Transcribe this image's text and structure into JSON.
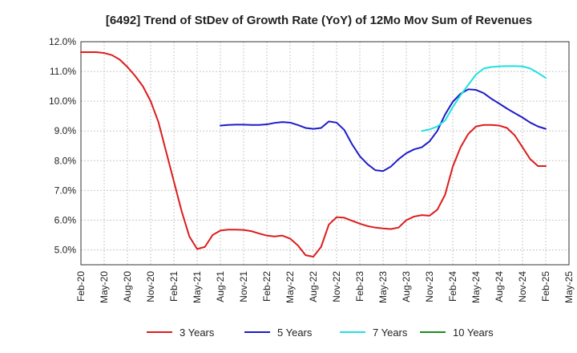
{
  "chart_data": {
    "type": "line",
    "title": "[6492]  Trend of StDev of Growth Rate (YoY) of 12Mo Mov Sum of Revenues",
    "xlabel": "",
    "ylabel": "",
    "ylim": [
      4.5,
      12.0
    ],
    "y_ticks": [
      5.0,
      6.0,
      7.0,
      8.0,
      9.0,
      10.0,
      11.0,
      12.0
    ],
    "y_tick_labels": [
      "5.0%",
      "6.0%",
      "7.0%",
      "8.0%",
      "9.0%",
      "10.0%",
      "11.0%",
      "12.0%"
    ],
    "x_range": [
      0,
      63
    ],
    "x_ticks": [
      0,
      3,
      6,
      9,
      12,
      15,
      18,
      21,
      24,
      27,
      30,
      33,
      36,
      39,
      42,
      45,
      48,
      51,
      54,
      57,
      60,
      63
    ],
    "x_tick_labels": [
      "Feb-20",
      "May-20",
      "Aug-20",
      "Nov-20",
      "Feb-21",
      "May-21",
      "Aug-21",
      "Nov-21",
      "Feb-22",
      "May-22",
      "Aug-22",
      "Nov-22",
      "Feb-23",
      "May-23",
      "Aug-23",
      "Nov-23",
      "Feb-24",
      "May-24",
      "Aug-24",
      "Nov-24",
      "Feb-25",
      "May-25"
    ],
    "grid": true,
    "legend_position": "bottom",
    "series": [
      {
        "name": "3 Years",
        "color": "#dd1c1c",
        "x": [
          0,
          1,
          2,
          3,
          4,
          5,
          6,
          7,
          8,
          9,
          10,
          11,
          12,
          13,
          14,
          15,
          16,
          17,
          18,
          19,
          20,
          21,
          22,
          23,
          24,
          25,
          26,
          27,
          28,
          29,
          30,
          31,
          32,
          33,
          34,
          35,
          36,
          37,
          38,
          39,
          40,
          41,
          42,
          43,
          44,
          45,
          46,
          47,
          48,
          49,
          50,
          51,
          52,
          53,
          54,
          55,
          56,
          57,
          58,
          59,
          60
        ],
        "values": [
          11.65,
          11.65,
          11.65,
          11.62,
          11.55,
          11.4,
          11.15,
          10.85,
          10.5,
          10.0,
          9.3,
          8.3,
          7.3,
          6.3,
          5.45,
          5.03,
          5.1,
          5.5,
          5.65,
          5.68,
          5.68,
          5.67,
          5.63,
          5.55,
          5.48,
          5.45,
          5.48,
          5.38,
          5.15,
          4.82,
          4.77,
          5.1,
          5.85,
          6.1,
          6.08,
          5.98,
          5.88,
          5.8,
          5.75,
          5.72,
          5.7,
          5.75,
          6.0,
          6.12,
          6.17,
          6.15,
          6.35,
          6.85,
          7.8,
          8.45,
          8.9,
          9.15,
          9.2,
          9.2,
          9.18,
          9.1,
          8.85,
          8.45,
          8.05,
          7.82,
          7.82
        ]
      },
      {
        "name": "5 Years",
        "color": "#1c1cc8",
        "x": [
          18,
          19,
          20,
          21,
          22,
          23,
          24,
          25,
          26,
          27,
          28,
          29,
          30,
          31,
          32,
          33,
          34,
          35,
          36,
          37,
          38,
          39,
          40,
          41,
          42,
          43,
          44,
          45,
          46,
          47,
          48,
          49,
          50,
          51,
          52,
          53,
          54,
          55,
          56,
          57,
          58,
          59,
          60
        ],
        "values": [
          9.18,
          9.2,
          9.21,
          9.21,
          9.2,
          9.2,
          9.22,
          9.27,
          9.3,
          9.28,
          9.2,
          9.1,
          9.07,
          9.1,
          9.32,
          9.28,
          9.03,
          8.55,
          8.15,
          7.88,
          7.68,
          7.65,
          7.8,
          8.05,
          8.25,
          8.38,
          8.45,
          8.65,
          9.0,
          9.55,
          9.98,
          10.25,
          10.4,
          10.38,
          10.27,
          10.08,
          9.92,
          9.75,
          9.6,
          9.45,
          9.28,
          9.15,
          9.07
        ]
      },
      {
        "name": "7 Years",
        "color": "#22e0e0",
        "x": [
          44,
          45,
          46,
          47,
          48,
          49,
          50,
          51,
          52,
          53,
          54,
          55,
          56,
          57,
          58,
          59,
          60
        ],
        "values": [
          9.0,
          9.05,
          9.15,
          9.35,
          9.8,
          10.2,
          10.55,
          10.9,
          11.1,
          11.15,
          11.17,
          11.18,
          11.18,
          11.17,
          11.1,
          10.95,
          10.78
        ]
      },
      {
        "name": "10 Years",
        "color": "#1c8c1c",
        "x": [],
        "values": []
      }
    ]
  }
}
